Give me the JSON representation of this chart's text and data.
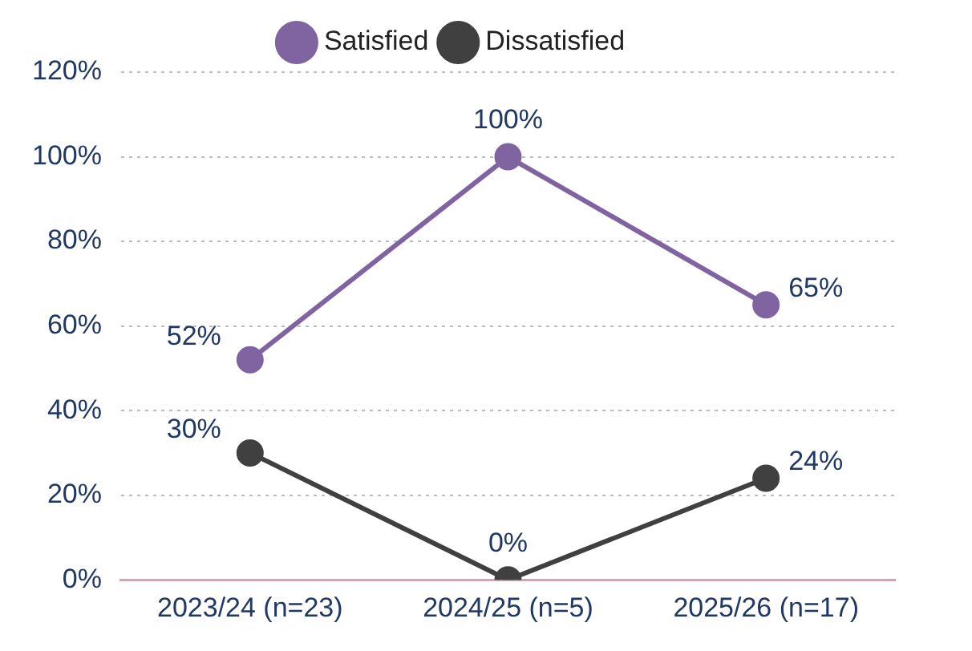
{
  "chart_data": {
    "type": "line",
    "categories": [
      "2023/24 (n=23)",
      "2024/25 (n=5)",
      "2025/26 (n=17)"
    ],
    "series": [
      {
        "name": "Satisfied",
        "color": "#8064a2",
        "values": [
          52,
          100,
          65
        ],
        "value_labels": [
          "52%",
          "100%",
          "65%"
        ]
      },
      {
        "name": "Dissatisfied",
        "color": "#404040",
        "values": [
          30,
          0,
          24
        ],
        "value_labels": [
          "30%",
          "0%",
          "24%"
        ]
      }
    ],
    "ylim": [
      0,
      120
    ],
    "yticks": [
      {
        "value": 0,
        "label": "0%"
      },
      {
        "value": 20,
        "label": "20%"
      },
      {
        "value": 40,
        "label": "40%"
      },
      {
        "value": 60,
        "label": "60%"
      },
      {
        "value": 80,
        "label": "80%"
      },
      {
        "value": 100,
        "label": "100%"
      },
      {
        "value": 120,
        "label": "120%"
      }
    ],
    "grid": "y",
    "legend": "top",
    "marker": "circle",
    "line_style": "solid"
  }
}
